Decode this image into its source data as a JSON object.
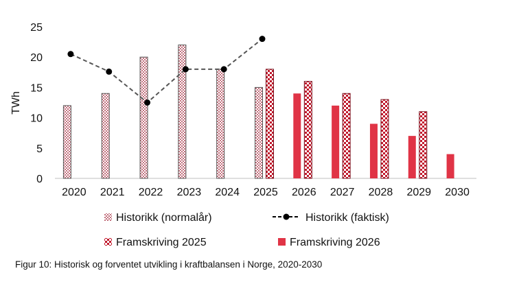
{
  "chart_data": {
    "type": "bar",
    "title": "",
    "xlabel": "",
    "ylabel": "TWh",
    "ylim": [
      0,
      25
    ],
    "yticks": [
      0,
      5,
      10,
      15,
      20,
      25
    ],
    "grid": false,
    "legend_position": "bottom",
    "categories": [
      "2020",
      "2021",
      "2022",
      "2023",
      "2024",
      "2025",
      "2026",
      "2027",
      "2028",
      "2029",
      "2030"
    ],
    "series": [
      {
        "name": "Historikk (normalår)",
        "kind": "bar",
        "pattern": "checker",
        "values": [
          12,
          14,
          20,
          22,
          18,
          15,
          null,
          null,
          null,
          null,
          null
        ]
      },
      {
        "name": "Historikk (faktisk)",
        "kind": "line",
        "style": "dashed",
        "values": [
          20.5,
          17.6,
          12.5,
          18,
          18,
          23,
          null,
          null,
          null,
          null,
          null
        ]
      },
      {
        "name": "Framskriving 2025",
        "kind": "bar",
        "pattern": "crosshatch",
        "values": [
          null,
          null,
          null,
          null,
          null,
          18,
          16,
          14,
          13,
          11,
          null
        ]
      },
      {
        "name": "Framskriving 2026",
        "kind": "bar",
        "pattern": "solid",
        "values": [
          null,
          null,
          null,
          null,
          null,
          null,
          14,
          12,
          9,
          7,
          4
        ]
      }
    ],
    "colors": {
      "framskriving_2026": "#e03446",
      "line": "#555555",
      "marker": "#000000",
      "axis": "#bfbfbf"
    }
  },
  "caption": "Figur 10: Historisk og forventet utvikling i kraftbalansen i Norge, 2020-2030"
}
